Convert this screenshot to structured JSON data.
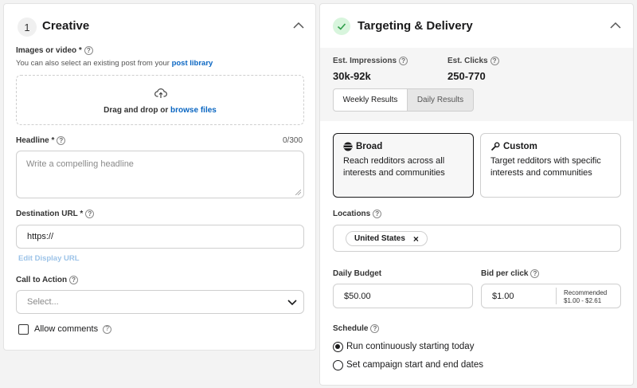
{
  "creative": {
    "step_number": "1",
    "title": "Creative",
    "media": {
      "label": "Images or video *",
      "hint_prefix": "You can also select an existing post from your",
      "hint_link": "post library",
      "drop_text": "Drag and drop or",
      "browse_link": "browse files"
    },
    "headline": {
      "label": "Headline *",
      "counter": "0/300",
      "placeholder": "Write a compelling headline"
    },
    "destination": {
      "label": "Destination URL *",
      "value": "https://",
      "edit_link": "Edit Display URL"
    },
    "cta": {
      "label": "Call to Action",
      "placeholder": "Select..."
    },
    "allow_comments": {
      "label": "Allow comments",
      "checked": false
    }
  },
  "targeting": {
    "title": "Targeting & Delivery",
    "impressions": {
      "label": "Est. Impressions",
      "value": "30k-92k"
    },
    "clicks": {
      "label": "Est. Clicks",
      "value": "250-770"
    },
    "tabs": [
      {
        "label": "Weekly Results",
        "active": true
      },
      {
        "label": "Daily Results",
        "active": false
      }
    ],
    "cards": [
      {
        "title": "Broad",
        "desc": "Reach redditors across all interests and communities",
        "selected": true
      },
      {
        "title": "Custom",
        "desc": "Target redditors with specific interests and communities",
        "selected": false
      }
    ],
    "locations": {
      "label": "Locations",
      "chip": "United States",
      "chip_remove": "×"
    },
    "budget": {
      "label": "Daily Budget",
      "value": "$50.00"
    },
    "bid": {
      "label": "Bid per click",
      "value": "$1.00",
      "recommended_label": "Recommended",
      "recommended_range": "$1.00 - $2.61"
    },
    "schedule": {
      "label": "Schedule",
      "options": [
        {
          "label": "Run continuously starting today",
          "checked": true
        },
        {
          "label": "Set campaign start and end dates",
          "checked": false
        }
      ]
    }
  },
  "colors": {
    "accent": "#0a66c2",
    "success": "#46d160",
    "border": "#cfcfcf"
  }
}
